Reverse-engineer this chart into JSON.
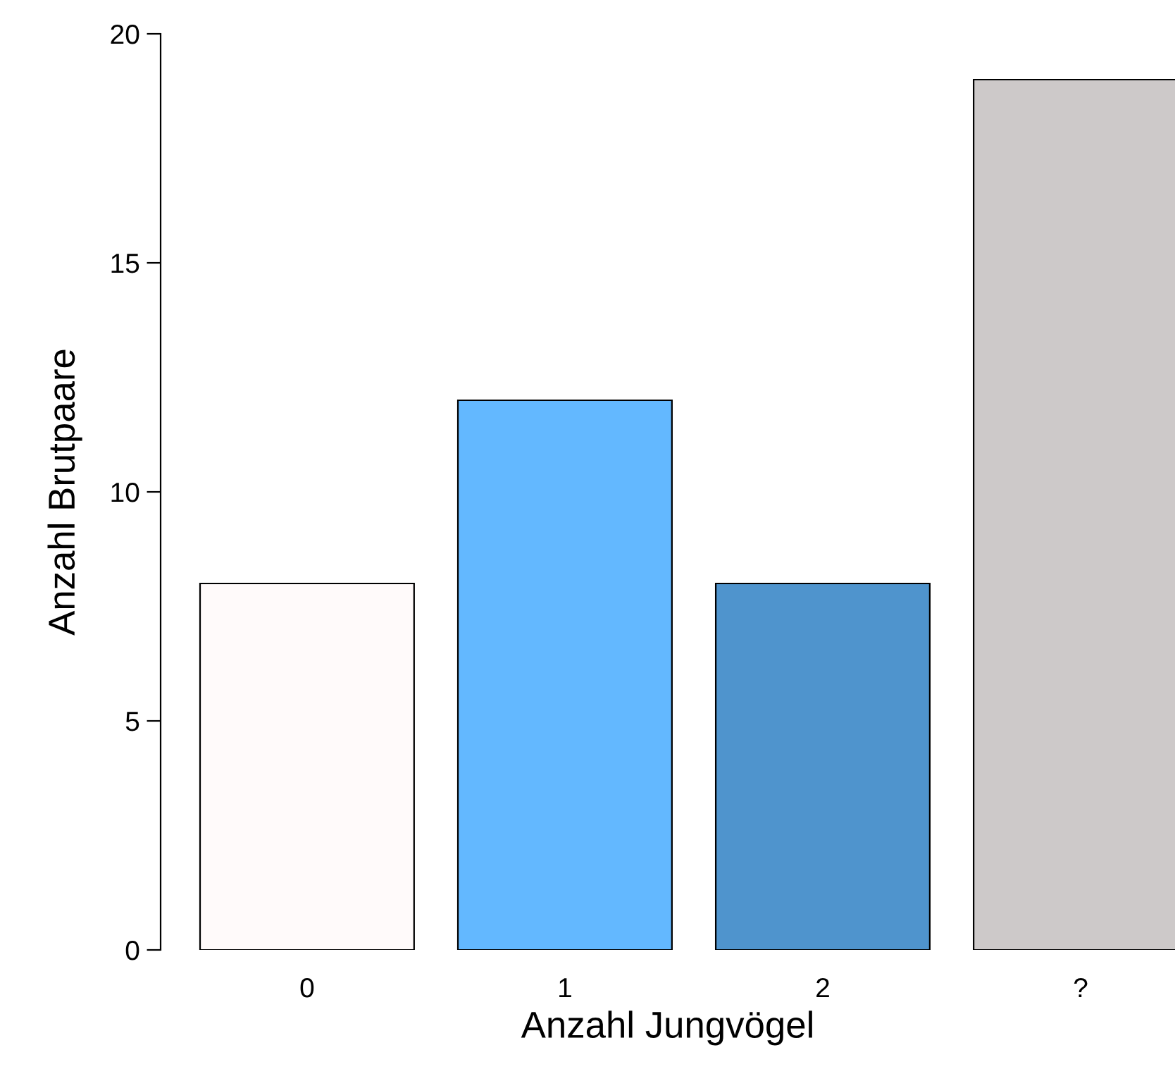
{
  "chart_data": {
    "type": "bar",
    "xlabel": "Anzahl Jungvögel",
    "ylabel": "Anzahl Brutpaare",
    "categories": [
      "0",
      "1",
      "2",
      "?"
    ],
    "values": [
      8,
      12,
      8,
      19
    ],
    "colors": [
      "#fffafa",
      "#63b8ff",
      "#4f94cd",
      "#cdc9c9"
    ],
    "ylim": [
      0,
      20
    ],
    "yticks": [
      0,
      5,
      10,
      15,
      20
    ],
    "grid": false,
    "legend": false
  }
}
